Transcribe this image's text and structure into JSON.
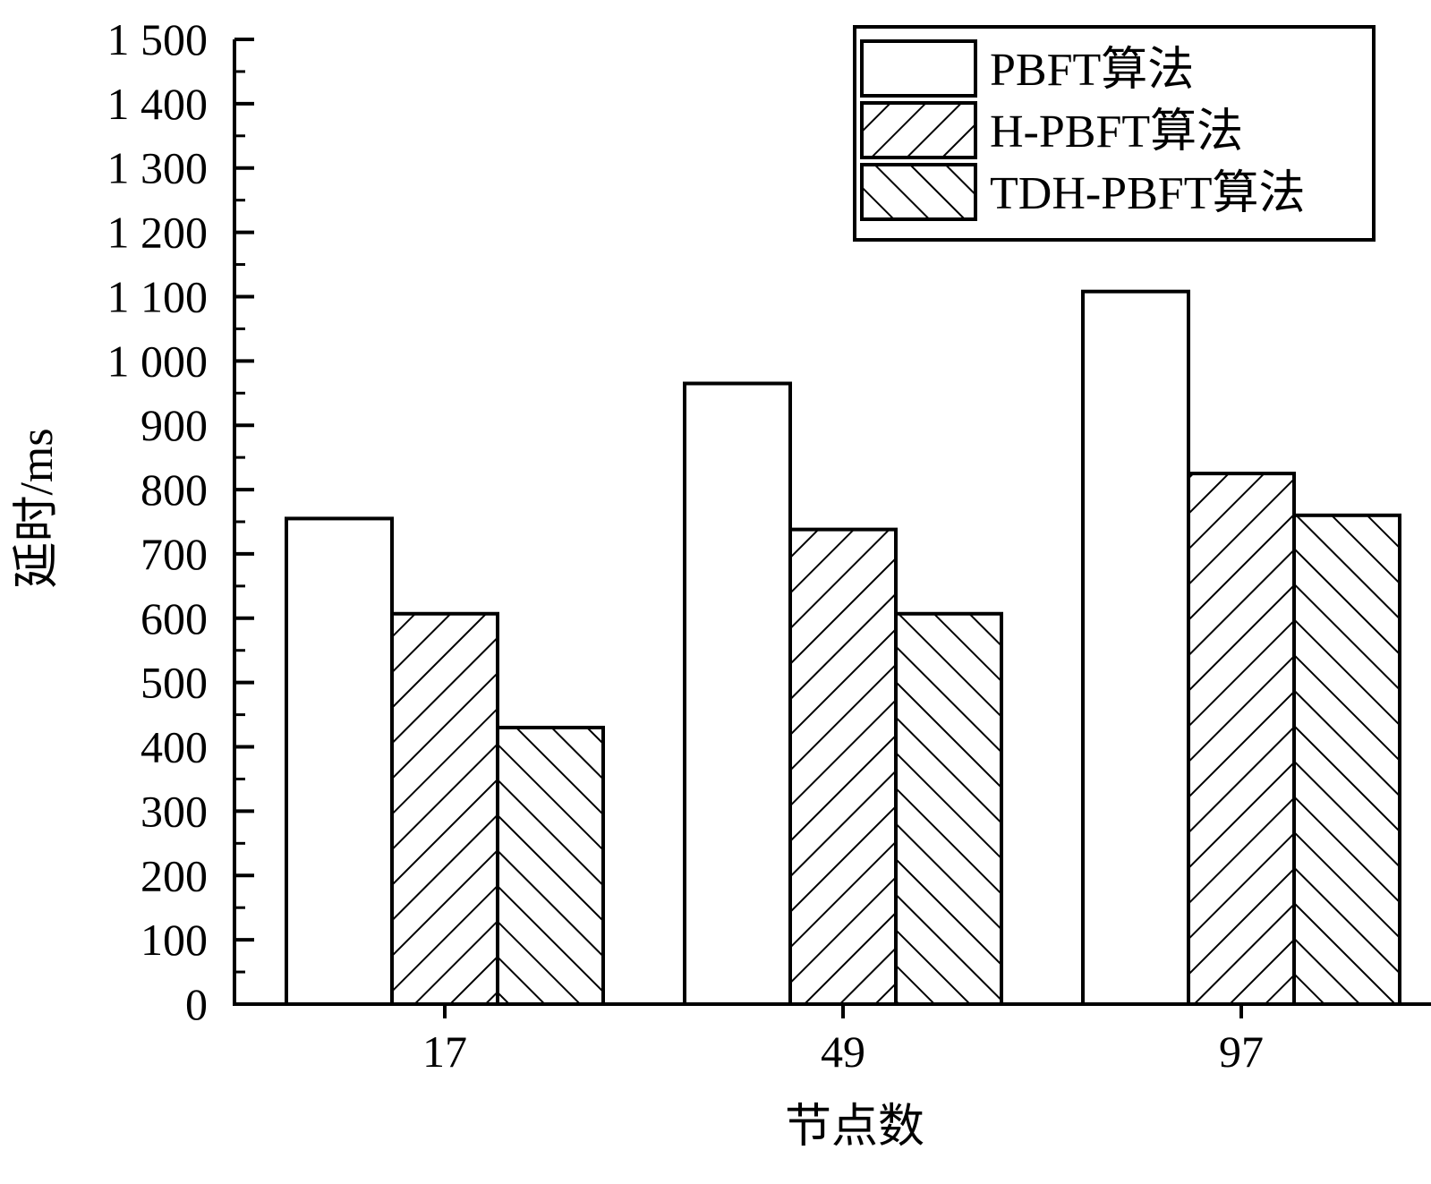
{
  "chart_data": {
    "type": "bar",
    "xlabel": "节点数",
    "ylabel": "延时/ms",
    "categories": [
      "17",
      "49",
      "97"
    ],
    "ylim": [
      0,
      1500
    ],
    "yticks": [
      0,
      100,
      200,
      300,
      400,
      500,
      600,
      700,
      800,
      900,
      1000,
      1100,
      1200,
      1300,
      1400,
      1500
    ],
    "ytick_labels": [
      "0",
      "100",
      "200",
      "300",
      "400",
      "500",
      "600",
      "700",
      "800",
      "900",
      "1 000",
      "1 100",
      "1 200",
      "1 300",
      "1 400",
      "1 500"
    ],
    "series": [
      {
        "name": "PBFT算法",
        "values": [
          755,
          965,
          1108
        ],
        "pattern": "none"
      },
      {
        "name": "H-PBFT算法",
        "values": [
          607,
          738,
          825
        ],
        "pattern": "forward-diagonal"
      },
      {
        "name": "TDH-PBFT算法",
        "values": [
          430,
          607,
          760
        ],
        "pattern": "back-diagonal"
      }
    ],
    "grid": false,
    "legend_position": "top-right",
    "colors": {
      "bar_fill": "#ffffff",
      "stroke": "#000000"
    }
  }
}
